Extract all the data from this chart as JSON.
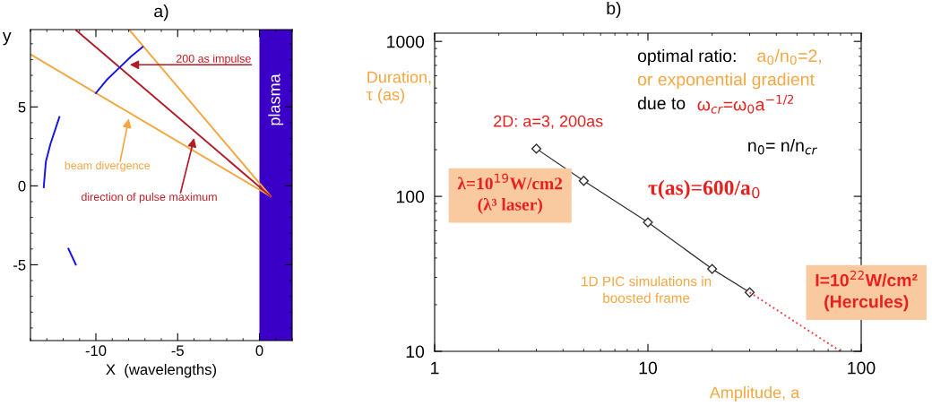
{
  "chart_data": [
    {
      "type": "line",
      "title": "a)",
      "xlabel": "X  (wavelengths)",
      "ylabel": "y",
      "xlim": [
        -14,
        2
      ],
      "ylim": [
        -9.8,
        9.9
      ],
      "xticks": [
        -10,
        -5,
        0
      ],
      "yticks": [
        -5,
        0,
        5
      ],
      "grid": false,
      "marker": "none",
      "line_style": "solid",
      "series": [
        {
          "color": "#f4a640",
          "x": [
            0.68,
            -14
          ],
          "values": [
            -0.66,
            8.33
          ]
        },
        {
          "color": "#f4a640",
          "x": [
            0.68,
            -7.93
          ],
          "values": [
            -0.66,
            9.85
          ]
        },
        {
          "color": "#b01e28",
          "x": [
            0.68,
            -11.2
          ],
          "values": [
            -0.66,
            9.85
          ]
        },
        {
          "color": "#1414e6",
          "x": [
            -10,
            -9.3,
            -8.57,
            -7.85,
            -7.14
          ],
          "values": [
            5.87,
            6.75,
            7.48,
            8.2,
            8.8
          ]
        },
        {
          "color": "#1414e6",
          "x": [
            -13.19,
            -13.06,
            -12.78,
            -12.23
          ],
          "values": [
            -0.09,
            1.52,
            2.65,
            4.36
          ]
        },
        {
          "color": "#1414e6",
          "x": [
            -11.68,
            -11.23
          ],
          "values": [
            -3.98,
            -4.98
          ]
        }
      ],
      "bands": [
        {
          "axis": "x",
          "from": 0,
          "to": 2,
          "label": "plasma",
          "color": "#3a00c8"
        }
      ],
      "annotations": [
        {
          "text": "200 as impulse",
          "x": -7.93,
          "y": 7.67
        },
        {
          "text": "beam divergence",
          "x": -7.99,
          "y": 4.26
        },
        {
          "text": "direction of pulse maximum",
          "x": -3.99,
          "y": 3.03
        }
      ]
    },
    {
      "type": "line",
      "title": "b)",
      "xlabel": "Amplitude, a",
      "ylabel": "Duration,\nτ (as)",
      "log": "xy",
      "xlim": [
        1,
        100
      ],
      "ylim": [
        10,
        1130
      ],
      "xticks": [
        1,
        10,
        100
      ],
      "yticks": [
        10,
        100,
        1000
      ],
      "grid": false,
      "series": [
        {
          "color": "#303030",
          "x": [
            3,
            5,
            10,
            20,
            30
          ],
          "values": [
            203,
            126,
            68,
            34,
            24
          ],
          "marker": "diamond",
          "line_style": "solid"
        },
        {
          "color": "#e8474c",
          "x": [
            30,
            80
          ],
          "values": [
            24,
            10
          ],
          "marker": "none",
          "line_style": "dotted"
        }
      ],
      "annotations": [
        "optimal ratio:",
        "a$_{0}$/n$_{0}$=2,",
        "or exponential gradient",
        "due to",
        "ω$_{cr}$=ω$_{0}$a$^{−1/2}$",
        "n$_{0}$= n/n$_{cr}$",
        {
          "text": "2D: a=3, 200as",
          "x": 3,
          "y": 203
        },
        "τ(as)=600/a$_{0}$",
        "λ=10$^{19}$W/cm2\n(λ³ laser)",
        "1D PIC simulations in\nboosted frame",
        "I=10$^{22}$W/cm²\n(Hercules)"
      ]
    }
  ]
}
